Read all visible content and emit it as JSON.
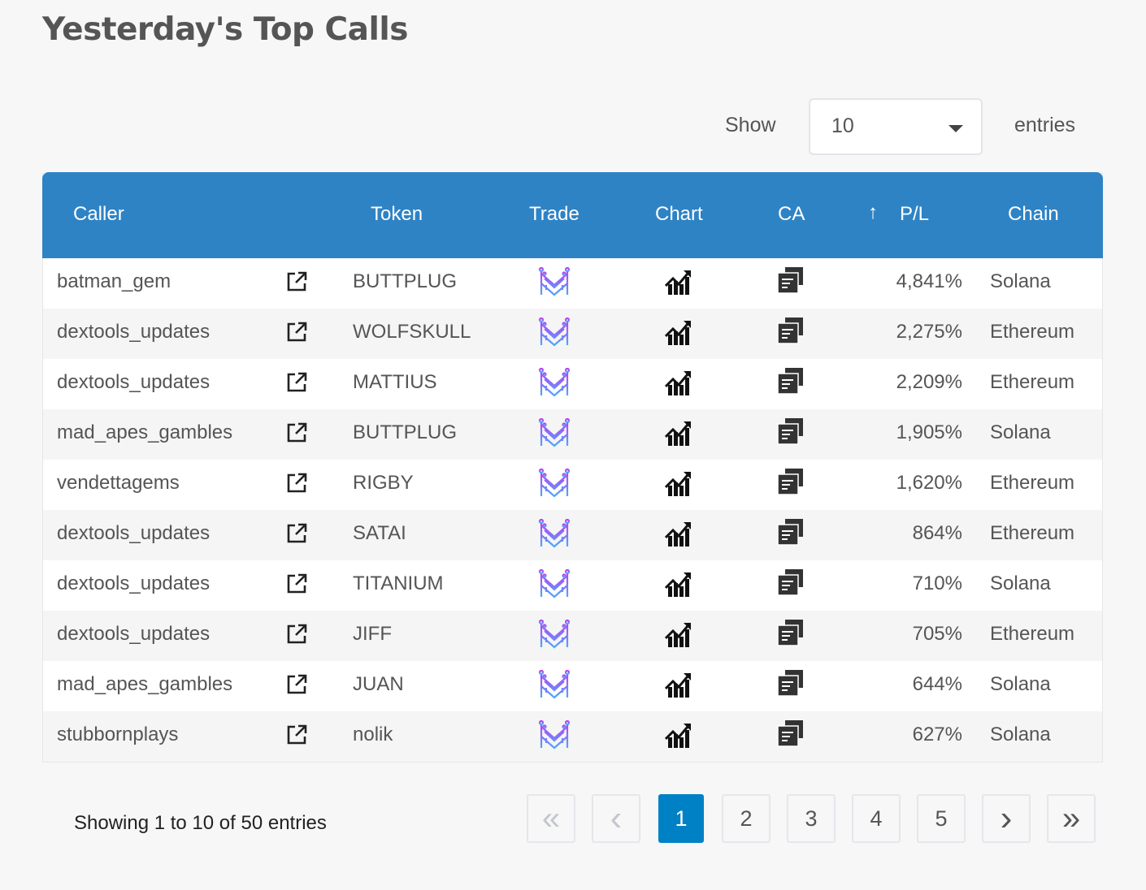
{
  "title": "Yesterday's Top Calls",
  "length": {
    "show_label": "Show",
    "value": "10",
    "entries_label": "entries"
  },
  "columns": {
    "caller": "Caller",
    "token": "Token",
    "trade": "Trade",
    "chart": "Chart",
    "ca": "CA",
    "sort_arrow": "↑",
    "pl": "P/L",
    "chain": "Chain"
  },
  "colors": {
    "header": "#2e83c5",
    "active_page": "#0081c6"
  },
  "rows": [
    {
      "caller": "batman_gem",
      "token": "BUTTPLUG",
      "pl": "4,841%",
      "chain": "Solana"
    },
    {
      "caller": "dextools_updates",
      "token": "WOLFSKULL",
      "pl": "2,275%",
      "chain": "Ethereum"
    },
    {
      "caller": "dextools_updates",
      "token": "MATTIUS",
      "pl": "2,209%",
      "chain": "Ethereum"
    },
    {
      "caller": "mad_apes_gambles",
      "token": "BUTTPLUG",
      "pl": "1,905%",
      "chain": "Solana"
    },
    {
      "caller": "vendettagems",
      "token": "RIGBY",
      "pl": "1,620%",
      "chain": "Ethereum"
    },
    {
      "caller": "dextools_updates",
      "token": "SATAI",
      "pl": "864%",
      "chain": "Ethereum"
    },
    {
      "caller": "dextools_updates",
      "token": "TITANIUM",
      "pl": "710%",
      "chain": "Solana"
    },
    {
      "caller": "dextools_updates",
      "token": "JIFF",
      "pl": "705%",
      "chain": "Ethereum"
    },
    {
      "caller": "mad_apes_gambles",
      "token": "JUAN",
      "pl": "644%",
      "chain": "Solana"
    },
    {
      "caller": "stubbornplays",
      "token": "nolik",
      "pl": "627%",
      "chain": "Solana"
    }
  ],
  "info": "Showing 1 to 10 of 50 entries",
  "pagination": {
    "first": "«",
    "prev": "‹",
    "pages": [
      "1",
      "2",
      "3",
      "4",
      "5"
    ],
    "next": "›",
    "last": "»",
    "current": "1"
  }
}
